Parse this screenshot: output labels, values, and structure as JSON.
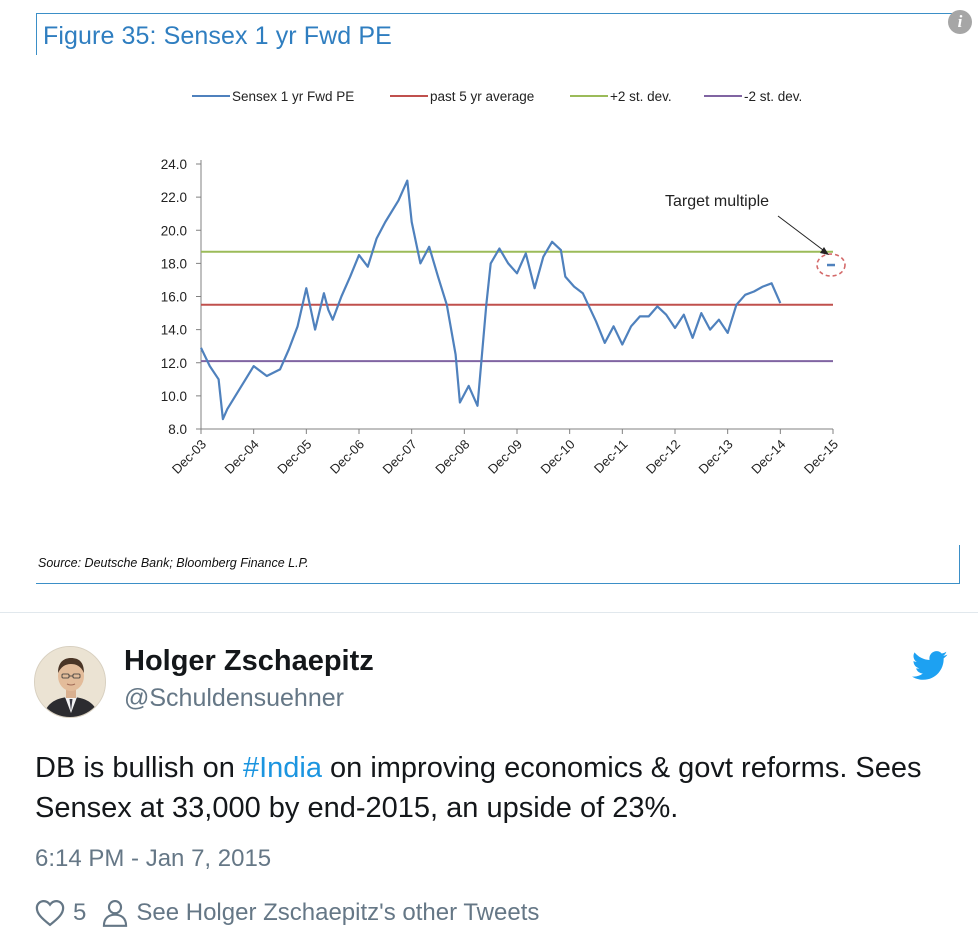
{
  "figure": {
    "title": "Figure 35: Sensex 1 yr Fwd PE",
    "source": "Source: Deutsche Bank; Bloomberg Finance L.P.",
    "info_icon": "info-icon"
  },
  "chart_data": {
    "type": "line",
    "title": "",
    "xlabel": "",
    "ylabel": "",
    "ylim": [
      8.0,
      24.0
    ],
    "yticks": [
      "8.0",
      "10.0",
      "12.0",
      "14.0",
      "16.0",
      "18.0",
      "20.0",
      "22.0",
      "24.0"
    ],
    "x_ticks": [
      "Dec-03",
      "Dec-04",
      "Dec-05",
      "Dec-06",
      "Dec-07",
      "Dec-08",
      "Dec-09",
      "Dec-10",
      "Dec-11",
      "Dec-12",
      "Dec-13",
      "Dec-14",
      "Dec-15"
    ],
    "legend_position": "top",
    "grid": false,
    "series": [
      {
        "name": "Sensex 1 yr Fwd PE",
        "color": "#4f81bd",
        "x": [
          "2003-12",
          "2004-02",
          "2004-04",
          "2004-05",
          "2004-06",
          "2004-09",
          "2004-12",
          "2005-03",
          "2005-06",
          "2005-08",
          "2005-10",
          "2005-12",
          "2006-02",
          "2006-04",
          "2006-05",
          "2006-06",
          "2006-08",
          "2006-10",
          "2006-12",
          "2007-02",
          "2007-04",
          "2007-06",
          "2007-09",
          "2007-11",
          "2007-12",
          "2008-02",
          "2008-04",
          "2008-06",
          "2008-08",
          "2008-10",
          "2008-11",
          "2009-01",
          "2009-03",
          "2009-05",
          "2009-06",
          "2009-08",
          "2009-10",
          "2009-12",
          "2010-02",
          "2010-04",
          "2010-06",
          "2010-08",
          "2010-10",
          "2010-11",
          "2011-01",
          "2011-03",
          "2011-06",
          "2011-08",
          "2011-10",
          "2011-12",
          "2012-02",
          "2012-04",
          "2012-06",
          "2012-08",
          "2012-10",
          "2012-12",
          "2013-02",
          "2013-04",
          "2013-06",
          "2013-08",
          "2013-10",
          "2013-12",
          "2014-02",
          "2014-04",
          "2014-06",
          "2014-08",
          "2014-10",
          "2014-12"
        ],
        "values": [
          12.9,
          11.8,
          11.0,
          8.6,
          9.2,
          10.5,
          11.8,
          11.2,
          11.6,
          12.8,
          14.2,
          16.5,
          14.0,
          16.2,
          15.2,
          14.6,
          16.0,
          17.2,
          18.5,
          17.8,
          19.5,
          20.5,
          21.8,
          23.0,
          20.5,
          18.0,
          19.0,
          17.2,
          15.5,
          12.5,
          9.6,
          10.6,
          9.4,
          15.5,
          18.0,
          18.9,
          18.0,
          17.4,
          18.6,
          16.5,
          18.4,
          19.3,
          18.8,
          17.2,
          16.6,
          16.2,
          14.5,
          13.2,
          14.2,
          13.1,
          14.2,
          14.8,
          14.8,
          15.4,
          14.9,
          14.1,
          14.9,
          13.5,
          15.0,
          14.0,
          14.6,
          13.8,
          15.5,
          16.1,
          16.3,
          16.6,
          16.8,
          15.6
        ]
      },
      {
        "name": "past 5 yr average",
        "color": "#c0504d",
        "value": 15.5
      },
      {
        "name": "+2 st. dev.",
        "color": "#9bbb59",
        "value": 18.7
      },
      {
        "name": "-2 st. dev.",
        "color": "#8064a2",
        "value": 12.1
      }
    ],
    "target_point": {
      "x": "2015-12",
      "value": 17.9
    },
    "annotations": [
      {
        "text": "Target multiple"
      }
    ]
  },
  "tweet": {
    "author_name": "Holger Zschaepitz",
    "author_handle": "@Schuldensuehner",
    "text_before": "DB is bullish on ",
    "hashtag": "#India",
    "text_after": " on improving economics & govt reforms. Sees Sensex at 33,000 by end-2015, an upside of 23%.",
    "timestamp": "6:14 PM - Jan 7, 2015",
    "like_count": "5",
    "other_tweets_label": "See Holger Zschaepitz's other Tweets",
    "brand_color": "#1da1f2",
    "link_color": "#1b95e0",
    "muted_color": "#657786",
    "icons": [
      "heart-icon",
      "person-icon",
      "twitter-bird-icon"
    ]
  }
}
